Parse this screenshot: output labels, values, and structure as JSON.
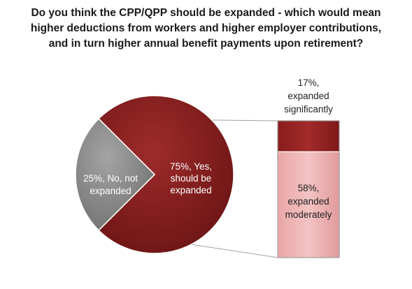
{
  "chart_data": {
    "type": "pie",
    "title": "Do you think the CPP/QPP should be expanded - which would mean higher deductions from workers and higher employer contributions, and in turn higher annual benefit payments upon retirement?",
    "slices": [
      {
        "label": "75%, Yes, should be expanded",
        "value": 75,
        "color": "#7b1c1c"
      },
      {
        "label": "25%, No, not expanded",
        "value": 25,
        "color": "#8c8c8c"
      }
    ],
    "breakdown": {
      "of_slice": "75%, Yes, should be expanded",
      "type": "stacked-bar",
      "segments": [
        {
          "label": "17%, expanded significantly",
          "value": 17,
          "color": "#9b2222"
        },
        {
          "label": "58%, expanded moderately",
          "value": 58,
          "color": "#e9a3a3"
        }
      ]
    }
  }
}
